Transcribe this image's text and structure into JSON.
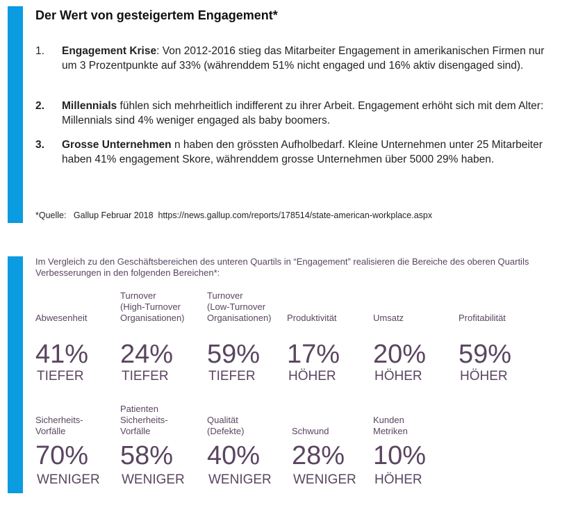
{
  "title": "Der Wert von gesteigertem Engagement*",
  "items": [
    {
      "number": "1.",
      "bold": "Engagement Krise",
      "text": ": Von 2012-2016 stieg das Mitarbeiter Engagement in amerikanischen Firmen nur um 3 Prozentpunkte auf 33% (währenddem 51% nicht engaged und 16% aktiv disengaged sind)."
    },
    {
      "number": "2.",
      "bold": "Millennials",
      "text": " fühlen sich mehrheitlich indifferent zu ihrer Arbeit. Engagement erhöht sich mit dem Alter: Millennials sind 4% weniger engaged als baby boomers."
    },
    {
      "number": "3.",
      "bold": "Grosse Unternehmen",
      "text": " n haben den grössten Aufholbedarf. Kleine Unternehmen unter 25 Mitarbeiter haben 41% engagement Skore, währenddem grosse Unternehmen über 5000 29% haben."
    }
  ],
  "source": "*Quelle:   Gallup Februar 2018  https://news.gallup.com/reports/178514/state-american-workplace.aspx",
  "intro": "Im Vergleich zu den Geschäftsbereichen des unteren Quartils in “Engagement” realisieren die Bereiche des oberen Quartils Verbesserungen in den folgenden Bereichen*:",
  "stats": [
    {
      "label": [
        "Abwesenheit"
      ],
      "value": "41%",
      "desc": "TIEFER"
    },
    {
      "label": [
        "Turnover",
        "(High-Turnover",
        "Organisationen)"
      ],
      "value": "24%",
      "desc": "TIEFER"
    },
    {
      "label": [
        "Turnover",
        "(Low-Turnover",
        "Organisationen)"
      ],
      "value": "59%",
      "desc": "TIEFER"
    },
    {
      "label": [
        "Produktivität"
      ],
      "value": "17%",
      "desc": "HÖHER"
    },
    {
      "label": [
        "Umsatz"
      ],
      "value": "20%",
      "desc": "HÖHER"
    },
    {
      "label": [
        "Profitabilität"
      ],
      "value": "59%",
      "desc": "HÖHER"
    },
    {
      "label": [
        "Sicherheits-",
        "Vorfälle"
      ],
      "value": "70%",
      "desc": "WENIGER"
    },
    {
      "label": [
        "Patienten",
        "Sicherheits-",
        "Vorfälle"
      ],
      "value": "58%",
      "desc": "WENIGER"
    },
    {
      "label": [
        "Qualität",
        "(Defekte)"
      ],
      "value": "40%",
      "desc": "WENIGER"
    },
    {
      "label": [
        "Schwund"
      ],
      "value": "28%",
      "desc": "WENIGER"
    },
    {
      "label": [
        "Kunden",
        "Metriken"
      ],
      "value": "10%",
      "desc": "HÖHER"
    }
  ],
  "colors": {
    "accent_bar": "#0a9be0",
    "stat_text": "#5a4560"
  }
}
